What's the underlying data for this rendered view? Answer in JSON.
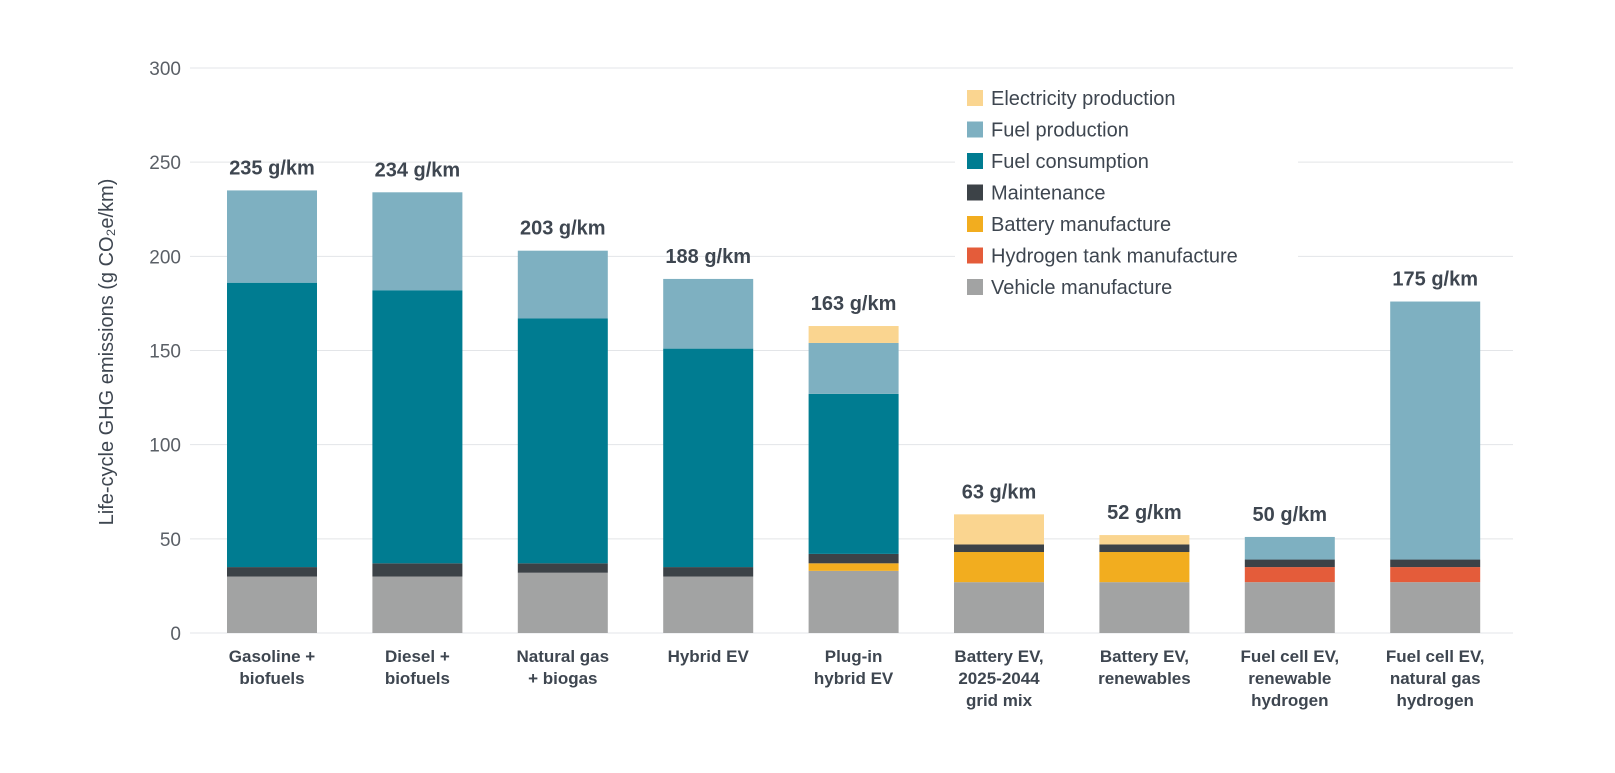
{
  "chart_data": {
    "type": "bar",
    "stacked": true,
    "ylabel": "Life-cycle GHG emissions (g CO₂e/km)",
    "ylim": [
      0,
      300
    ],
    "yticks": [
      0,
      50,
      100,
      150,
      200,
      250,
      300
    ],
    "grid": true,
    "legend_position": "top-right",
    "categories": [
      [
        "Gasoline +",
        "biofuels"
      ],
      [
        "Diesel +",
        "biofuels"
      ],
      [
        "Natural gas",
        "+ biogas"
      ],
      [
        "Hybrid EV"
      ],
      [
        "Plug-in",
        "hybrid EV"
      ],
      [
        "Battery EV,",
        "2025-2044",
        "grid mix"
      ],
      [
        "Battery EV,",
        "renewables"
      ],
      [
        "Fuel cell EV,",
        "renewable",
        "hydrogen"
      ],
      [
        "Fuel cell EV,",
        "natural gas",
        "hydrogen"
      ]
    ],
    "totals": [
      "235 g/km",
      "234 g/km",
      "203 g/km",
      "188 g/km",
      "163 g/km",
      "63 g/km",
      "52 g/km",
      "50 g/km",
      "175 g/km"
    ],
    "series": [
      {
        "name": "Vehicle manufacture",
        "color": "#a2a3a3",
        "values": [
          30,
          30,
          32,
          30,
          33,
          27,
          27,
          27,
          27
        ]
      },
      {
        "name": "Hydrogen tank manufacture",
        "color": "#e45c3a",
        "values": [
          0,
          0,
          0,
          0,
          0,
          0,
          0,
          8,
          8
        ]
      },
      {
        "name": "Battery manufacture",
        "color": "#f2ad1f",
        "values": [
          0,
          0,
          0,
          0,
          4,
          16,
          16,
          0,
          0
        ]
      },
      {
        "name": "Maintenance",
        "color": "#3c4247",
        "values": [
          5,
          7,
          5,
          5,
          5,
          4,
          4,
          4,
          4
        ]
      },
      {
        "name": "Fuel consumption",
        "color": "#007c91",
        "values": [
          151,
          145,
          130,
          116,
          85,
          0,
          0,
          0,
          0
        ]
      },
      {
        "name": "Fuel production",
        "color": "#7eb0c1",
        "values": [
          49,
          52,
          36,
          37,
          27,
          0,
          0,
          12,
          137
        ]
      },
      {
        "name": "Electricity production",
        "color": "#fad590",
        "values": [
          0,
          0,
          0,
          0,
          9,
          16,
          5,
          0,
          0
        ]
      }
    ],
    "legend_order": [
      "Electricity production",
      "Fuel production",
      "Fuel consumption",
      "Maintenance",
      "Battery manufacture",
      "Hydrogen tank manufacture",
      "Vehicle manufacture"
    ]
  }
}
